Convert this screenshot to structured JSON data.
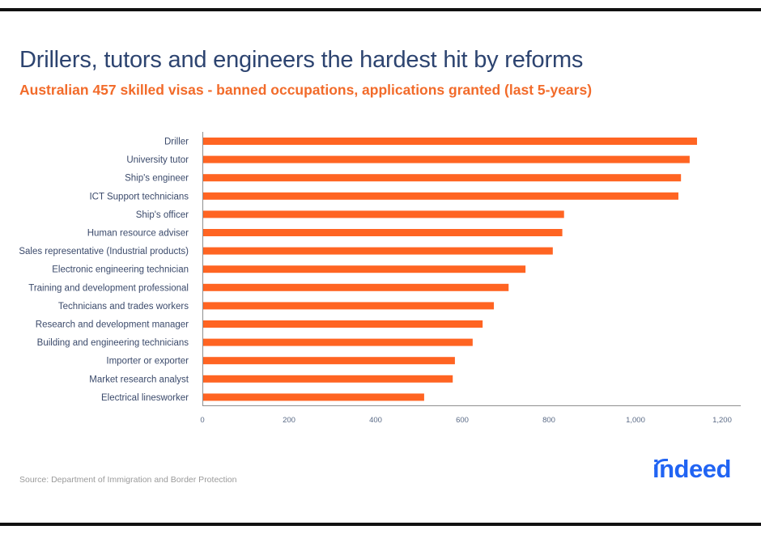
{
  "header": {
    "title": "Drillers, tutors and engineers the hardest hit by reforms",
    "subtitle": "Australian 457 skilled visas - banned occupations, applications granted (last 5-years)"
  },
  "footer": {
    "source": "Source: Department of Immigration and Border Protection",
    "logo_text": "indeed"
  },
  "colors": {
    "bar": "#ff6422",
    "title": "#2d4470",
    "subtitle": "#f26b2a",
    "logo": "#2164f3"
  },
  "chart_data": {
    "type": "bar",
    "orientation": "horizontal",
    "title": "Drillers, tutors and engineers the hardest hit by reforms",
    "subtitle": "Australian 457 skilled visas - banned occupations, applications granted (last 5-years)",
    "xlabel": "",
    "ylabel": "",
    "categories": [
      "Driller",
      "University tutor",
      "Ship's engineer",
      "ICT Support technicians",
      "Ship's officer",
      "Human resource adviser",
      "Sales representative (Industrial products)",
      "Electronic engineering technician",
      "Training and development professional",
      "Technicians and trades workers",
      "Research and development manager",
      "Building and engineering technicians",
      "Importer or exporter",
      "Market research analyst",
      "Electrical linesworker"
    ],
    "values": [
      1142,
      1125,
      1105,
      1099,
      835,
      831,
      809,
      746,
      707,
      673,
      647,
      624,
      583,
      578,
      512
    ],
    "xlim": [
      0,
      1243
    ],
    "xticks": [
      0,
      200,
      400,
      600,
      800,
      1000,
      1200
    ],
    "xtick_labels": [
      "0",
      "200",
      "400",
      "600",
      "800",
      "1,000",
      "1,200"
    ],
    "grid": false,
    "legend": "none"
  }
}
